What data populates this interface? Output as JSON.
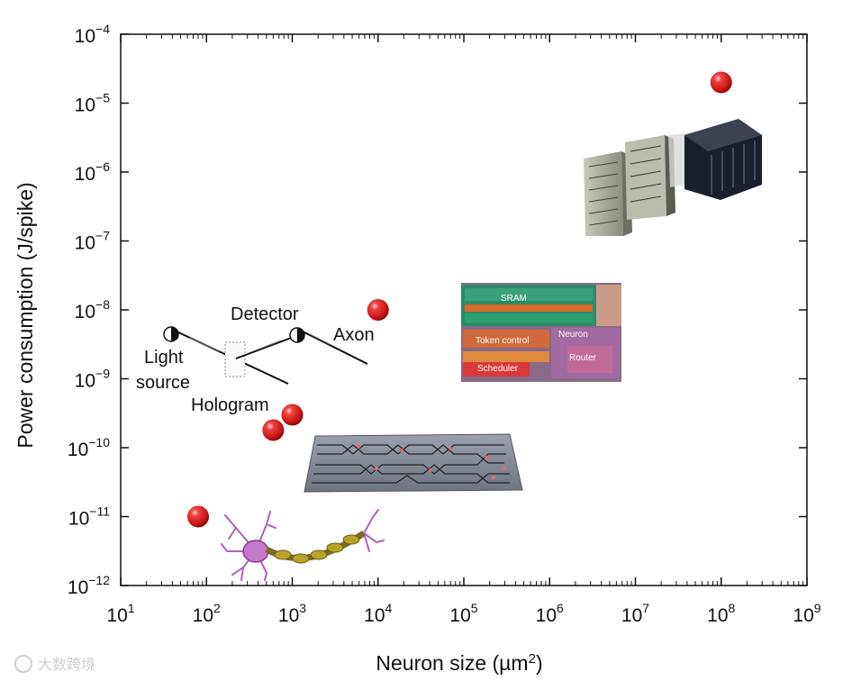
{
  "chart_data": {
    "type": "scatter",
    "xlabel_main": "Neuron size (",
    "xlabel_unit": "µm",
    "xlabel_sup": "2",
    "xlabel_end": ")",
    "ylabel": "Power consumption (J/spike)",
    "x_scale": "log",
    "y_scale": "log",
    "xlim": [
      10,
      1000000000
    ],
    "ylim": [
      1e-12,
      0.0001
    ],
    "x_ticks": [
      {
        "base": "10",
        "exp": "1"
      },
      {
        "base": "10",
        "exp": "2"
      },
      {
        "base": "10",
        "exp": "3"
      },
      {
        "base": "10",
        "exp": "4"
      },
      {
        "base": "10",
        "exp": "5"
      },
      {
        "base": "10",
        "exp": "6"
      },
      {
        "base": "10",
        "exp": "7"
      },
      {
        "base": "10",
        "exp": "8"
      },
      {
        "base": "10",
        "exp": "9"
      }
    ],
    "y_ticks": [
      {
        "base": "10",
        "exp": "−12"
      },
      {
        "base": "10",
        "exp": "−11"
      },
      {
        "base": "10",
        "exp": "−10"
      },
      {
        "base": "10",
        "exp": "−9"
      },
      {
        "base": "10",
        "exp": "−8"
      },
      {
        "base": "10",
        "exp": "−7"
      },
      {
        "base": "10",
        "exp": "−6"
      },
      {
        "base": "10",
        "exp": "−5"
      },
      {
        "base": "10",
        "exp": "−4"
      }
    ],
    "grid": false,
    "point_color": "#d81e1e",
    "points": [
      {
        "x": 80,
        "y": 1e-11
      },
      {
        "x": 600,
        "y": 1.8e-10
      },
      {
        "x": 1000,
        "y": 3e-10
      },
      {
        "x": 10000,
        "y": 1e-08
      },
      {
        "x": 100000000,
        "y": 2e-05
      }
    ],
    "annotations": {
      "light_source_1": "Light",
      "light_source_2": "source",
      "detector": "Detector",
      "axon": "Axon",
      "hologram": "Hologram"
    },
    "chip_labels": {
      "sram": "SRAM",
      "token_control": "Token control",
      "neuron": "Neuron",
      "scheduler": "Scheduler",
      "router": "Router"
    }
  },
  "watermark": "大数跨境"
}
